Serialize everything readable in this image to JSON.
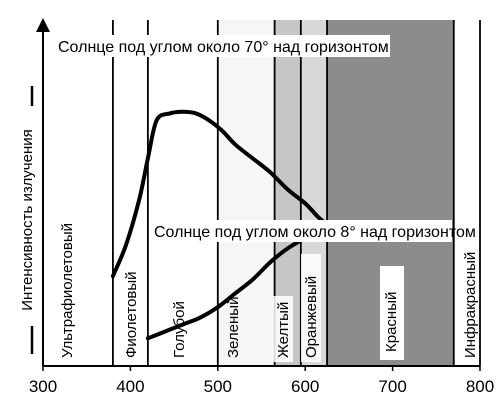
{
  "chart_data": {
    "type": "line",
    "title": "",
    "xlabel": "",
    "ylabel": "Интенсивность излучения",
    "xlim": [
      300,
      800
    ],
    "x_ticks": [
      300,
      400,
      500,
      600,
      700,
      800
    ],
    "grid": false,
    "legend": "none",
    "series": [
      {
        "name": "Солнце под углом около 70° над горизонтом",
        "x": [
          380,
          395,
          410,
          420,
          430,
          445,
          460,
          475,
          490,
          505,
          520,
          540,
          560,
          580,
          600,
          615,
          625
        ],
        "y": [
          0.26,
          0.35,
          0.48,
          0.6,
          0.71,
          0.73,
          0.735,
          0.73,
          0.71,
          0.68,
          0.64,
          0.6,
          0.56,
          0.51,
          0.47,
          0.43,
          0.41
        ]
      },
      {
        "name": "Солнце под углом около 8° над горизонтом",
        "x": [
          420,
          440,
          460,
          480,
          500,
          520,
          540,
          560,
          580,
          600,
          615,
          625
        ],
        "y": [
          0.08,
          0.1,
          0.12,
          0.14,
          0.17,
          0.21,
          0.25,
          0.3,
          0.34,
          0.37,
          0.39,
          0.4
        ]
      }
    ],
    "bands": [
      {
        "label": "Ультрафиолетовый",
        "from": 300,
        "to": 380,
        "fill": "#ffffff"
      },
      {
        "label": "Фиолетовый",
        "from": 380,
        "to": 420,
        "fill": "#ffffff"
      },
      {
        "label": "Голубой",
        "from": 420,
        "to": 500,
        "fill": "#ffffff"
      },
      {
        "label": "Зеленый",
        "from": 500,
        "to": 565,
        "fill": "#f6f6f6"
      },
      {
        "label": "Желтый",
        "from": 565,
        "to": 595,
        "fill": "#c6c6c6"
      },
      {
        "label": "Оранжевый",
        "from": 595,
        "to": 625,
        "fill": "#d8d8d8"
      },
      {
        "label": "Красный",
        "from": 625,
        "to": 770,
        "fill": "#8c8c8c"
      },
      {
        "label": "Инфракрасный",
        "from": 770,
        "to": 800,
        "fill": "#ffffff"
      }
    ]
  }
}
